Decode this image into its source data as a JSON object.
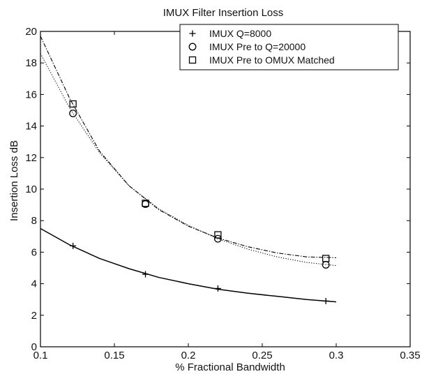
{
  "chart_data": {
    "type": "line",
    "title": "IMUX Filter Insertion Loss",
    "xlabel": "% Fractional Bandwidth",
    "ylabel": "Insertion Loss dB",
    "xlim": [
      0.1,
      0.35
    ],
    "ylim": [
      0,
      20
    ],
    "xticks": [
      0.1,
      0.15,
      0.2,
      0.25,
      0.3,
      0.35
    ],
    "xtick_labels": [
      "0.1",
      "0.15",
      "0.2",
      "0.25",
      "0.3",
      "0.35"
    ],
    "yticks": [
      0,
      2,
      4,
      6,
      8,
      10,
      12,
      14,
      16,
      18,
      20
    ],
    "ytick_labels": [
      "0",
      "2",
      "4",
      "6",
      "8",
      "10",
      "12",
      "14",
      "16",
      "18",
      "20"
    ],
    "grid": false,
    "legend_position": "top-right",
    "series": [
      {
        "name": "IMUX Q=8000",
        "marker": "plus",
        "line_style": "solid",
        "x": [
          0.122,
          0.171,
          0.22,
          0.293
        ],
        "y": [
          6.4,
          4.6,
          3.7,
          2.9
        ],
        "fit_x": [
          0.1,
          0.12,
          0.14,
          0.16,
          0.18,
          0.2,
          0.22,
          0.24,
          0.26,
          0.28,
          0.3
        ],
        "fit_y": [
          7.5,
          6.45,
          5.6,
          4.95,
          4.4,
          4.0,
          3.65,
          3.4,
          3.2,
          3.0,
          2.85
        ]
      },
      {
        "name": "IMUX Pre to Q=20000",
        "marker": "circle",
        "line_style": "dotted",
        "x": [
          0.122,
          0.171,
          0.22,
          0.293
        ],
        "y": [
          14.8,
          9.05,
          6.85,
          5.2
        ],
        "fit_x": [
          0.1,
          0.12,
          0.14,
          0.16,
          0.18,
          0.2,
          0.22,
          0.24,
          0.26,
          0.28,
          0.3
        ],
        "fit_y": [
          18.6,
          15.1,
          12.3,
          10.2,
          8.75,
          7.7,
          6.85,
          6.2,
          5.7,
          5.35,
          5.15
        ]
      },
      {
        "name": "IMUX Pre to OMUX Matched",
        "marker": "square",
        "line_style": "dashdot",
        "x": [
          0.122,
          0.171,
          0.22,
          0.293
        ],
        "y": [
          15.4,
          9.1,
          7.1,
          5.6
        ],
        "fit_x": [
          0.1,
          0.12,
          0.14,
          0.16,
          0.18,
          0.2,
          0.22,
          0.24,
          0.26,
          0.28,
          0.3
        ],
        "fit_y": [
          19.7,
          15.7,
          12.4,
          10.2,
          8.7,
          7.65,
          6.9,
          6.35,
          5.95,
          5.7,
          5.65
        ]
      }
    ]
  }
}
